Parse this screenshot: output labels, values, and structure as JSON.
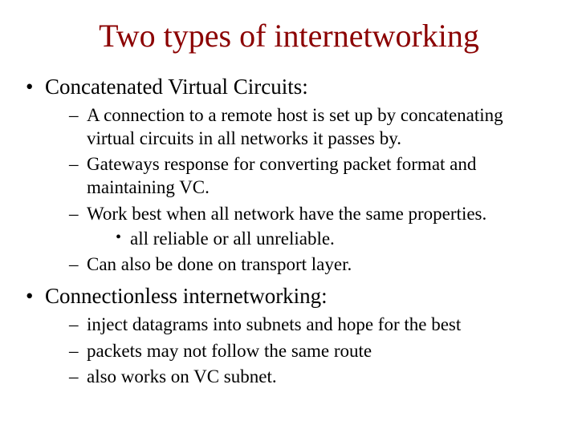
{
  "title": "Two types of internetworking",
  "title_color": "#8b0000",
  "title_fontsize": 40,
  "body_color": "#000000",
  "background_color": "#ffffff",
  "font_family": "Times New Roman",
  "bullets_level1_fontsize": 27,
  "bullets_level2_fontsize": 23,
  "bullets_level3_fontsize": 23,
  "sections": [
    {
      "heading": "Concatenated Virtual Circuits:",
      "items": [
        {
          "text": "A connection to a remote host is set up by concatenating virtual circuits in all networks it passes by."
        },
        {
          "text": "Gateways response for converting packet format and maintaining VC."
        },
        {
          "text": "Work best when all network have the same properties.",
          "subitems": [
            {
              "text": "all reliable or all unreliable."
            }
          ]
        },
        {
          "text": "Can also be done on transport layer."
        }
      ]
    },
    {
      "heading": "Connectionless internetworking:",
      "items": [
        {
          "text": "inject datagrams into subnets and hope for the best"
        },
        {
          "text": "packets may not follow the same route"
        },
        {
          "text": "also works on VC subnet."
        }
      ]
    }
  ]
}
